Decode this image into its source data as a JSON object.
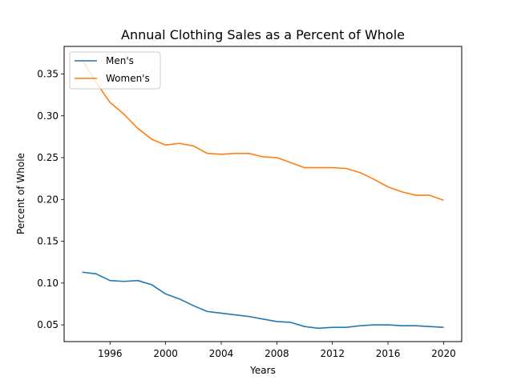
{
  "chart_data": {
    "type": "line",
    "title": "Annual Clothing Sales as a Percent of Whole",
    "xlabel": "Years",
    "ylabel": "Percent of Whole",
    "x": [
      1994,
      1995,
      1996,
      1997,
      1998,
      1999,
      2000,
      2001,
      2002,
      2003,
      2004,
      2005,
      2006,
      2007,
      2008,
      2009,
      2010,
      2011,
      2012,
      2013,
      2014,
      2015,
      2016,
      2017,
      2018,
      2019,
      2020
    ],
    "series": [
      {
        "name": "Men's",
        "color": "#1f77b4",
        "values": [
          0.113,
          0.111,
          0.103,
          0.102,
          0.103,
          0.098,
          0.087,
          0.081,
          0.073,
          0.066,
          0.064,
          0.062,
          0.06,
          0.057,
          0.054,
          0.053,
          0.048,
          0.046,
          0.047,
          0.047,
          0.049,
          0.05,
          0.05,
          0.049,
          0.049,
          0.048,
          0.047
        ]
      },
      {
        "name": "Women's",
        "color": "#ff7f0e",
        "values": [
          0.367,
          0.34,
          0.316,
          0.302,
          0.285,
          0.272,
          0.265,
          0.267,
          0.264,
          0.255,
          0.254,
          0.255,
          0.255,
          0.251,
          0.25,
          0.244,
          0.238,
          0.238,
          0.238,
          0.237,
          0.232,
          0.224,
          0.215,
          0.209,
          0.205,
          0.205,
          0.199
        ]
      }
    ],
    "xlim": [
      1992.7,
      2021.3
    ],
    "ylim": [
      0.03,
      0.383
    ],
    "xticks": [
      1996,
      2000,
      2004,
      2008,
      2012,
      2016,
      2020
    ],
    "yticks": [
      0.05,
      0.1,
      0.15,
      0.2,
      0.25,
      0.3,
      0.35
    ],
    "ytick_labels": [
      "0.05",
      "0.10",
      "0.15",
      "0.20",
      "0.25",
      "0.30",
      "0.35"
    ],
    "grid": false,
    "legend_position": "top-left"
  }
}
